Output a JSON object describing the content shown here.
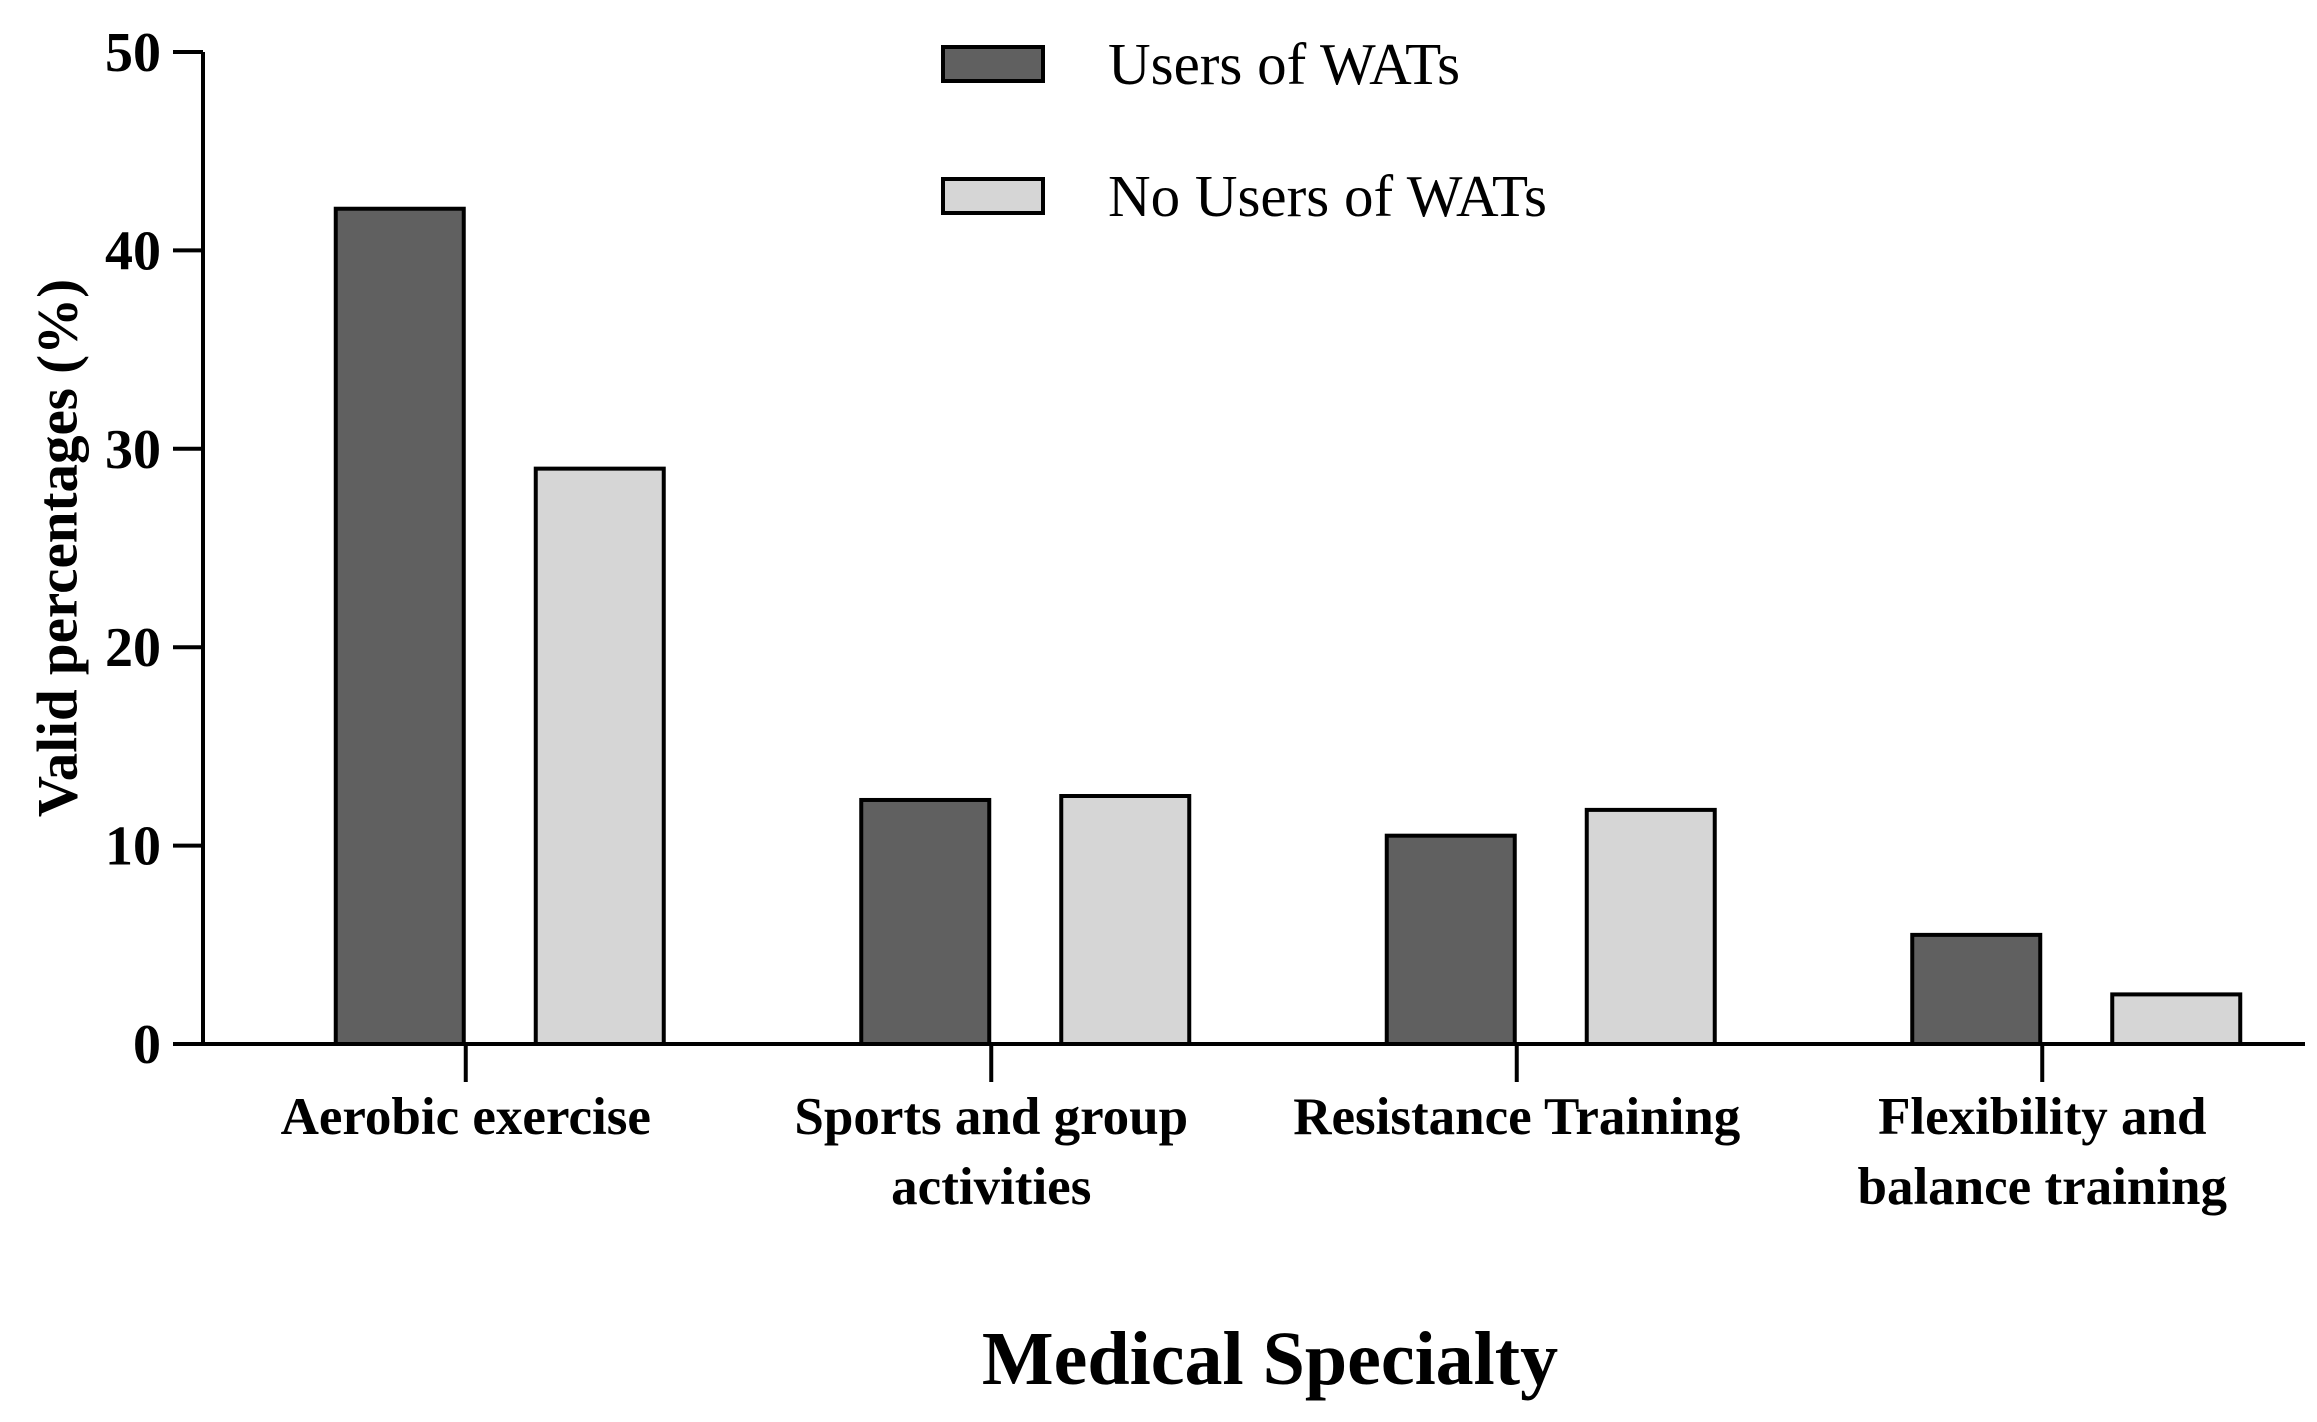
{
  "chart_data": {
    "type": "bar",
    "title": "",
    "xlabel": "Medical Specialty",
    "ylabel": "Valid percentages (%)",
    "ylim": [
      0,
      50
    ],
    "yticks": [
      "0",
      "10",
      "20",
      "30",
      "40",
      "50"
    ],
    "ytick_values": [
      0,
      10,
      20,
      30,
      40,
      50
    ],
    "categories": [
      [
        "Aerobic exercise"
      ],
      [
        "Sports and group",
        "activities"
      ],
      [
        "Resistance Training"
      ],
      [
        "Flexibility and",
        "balance training"
      ]
    ],
    "series": [
      {
        "name": "Users of WATs",
        "color": "#606060",
        "values": [
          42.1,
          12.3,
          10.5,
          5.5
        ]
      },
      {
        "name": "No Users of WATs",
        "color": "#d6d6d6",
        "values": [
          29.0,
          12.5,
          11.8,
          2.5
        ]
      }
    ],
    "legend_position": "top-center",
    "grid": false
  }
}
